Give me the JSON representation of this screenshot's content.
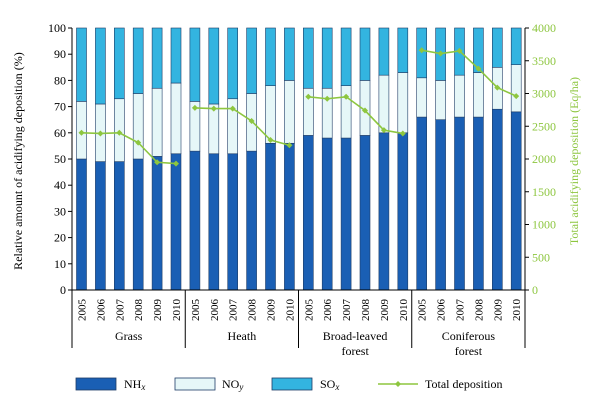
{
  "chart_data": {
    "type": "bar",
    "stacked": true,
    "ylabel_left": "Relative amount of acidifying deposition (%)",
    "ylabel_right": "Total acidifying deposition (Eq/ha)",
    "ylim_left": [
      0,
      100
    ],
    "yticks_left": [
      0,
      10,
      20,
      30,
      40,
      50,
      60,
      70,
      80,
      90,
      100
    ],
    "ylim_right": [
      0,
      4000
    ],
    "yticks_right": [
      0,
      500,
      1000,
      1500,
      2000,
      2500,
      3000,
      3500,
      4000
    ],
    "years": [
      "2005",
      "2006",
      "2007",
      "2008",
      "2009",
      "2010"
    ],
    "groups": [
      {
        "label_lines": [
          "Grass"
        ],
        "nhx": [
          50,
          49,
          49,
          50,
          51,
          52
        ],
        "noy": [
          22,
          22,
          24,
          25,
          26,
          27
        ],
        "total": [
          2400,
          2390,
          2400,
          2250,
          1950,
          1930
        ]
      },
      {
        "label_lines": [
          "Heath"
        ],
        "nhx": [
          53,
          52,
          52,
          53,
          56,
          56
        ],
        "noy": [
          19,
          19,
          21,
          22,
          22,
          24
        ],
        "total": [
          2780,
          2770,
          2770,
          2580,
          2290,
          2210
        ]
      },
      {
        "label_lines": [
          "Broad-leaved",
          "forest"
        ],
        "nhx": [
          59,
          58,
          58,
          59,
          60,
          60
        ],
        "noy": [
          18,
          19,
          20,
          21,
          22,
          23
        ],
        "total": [
          2950,
          2920,
          2950,
          2740,
          2440,
          2390
        ]
      },
      {
        "label_lines": [
          "Coniferous",
          "forest"
        ],
        "nhx": [
          66,
          65,
          66,
          66,
          69,
          68
        ],
        "noy": [
          15,
          15,
          16,
          17,
          16,
          18
        ],
        "total": [
          3660,
          3610,
          3650,
          3380,
          3090,
          2960
        ]
      }
    ],
    "legend": {
      "nhx": {
        "base": "NH",
        "sub": "x"
      },
      "noy": {
        "base": "NO",
        "sub": "y"
      },
      "sox": {
        "base": "SO",
        "sub": "x"
      },
      "total": "Total deposition"
    },
    "colors": {
      "nhx": "#1a5fb4",
      "noy": "#e6f7f8",
      "sox": "#33b4e0",
      "total": "#8dc63f",
      "right_axis": "#8dc63f",
      "stroke": "#1f3c66"
    }
  }
}
